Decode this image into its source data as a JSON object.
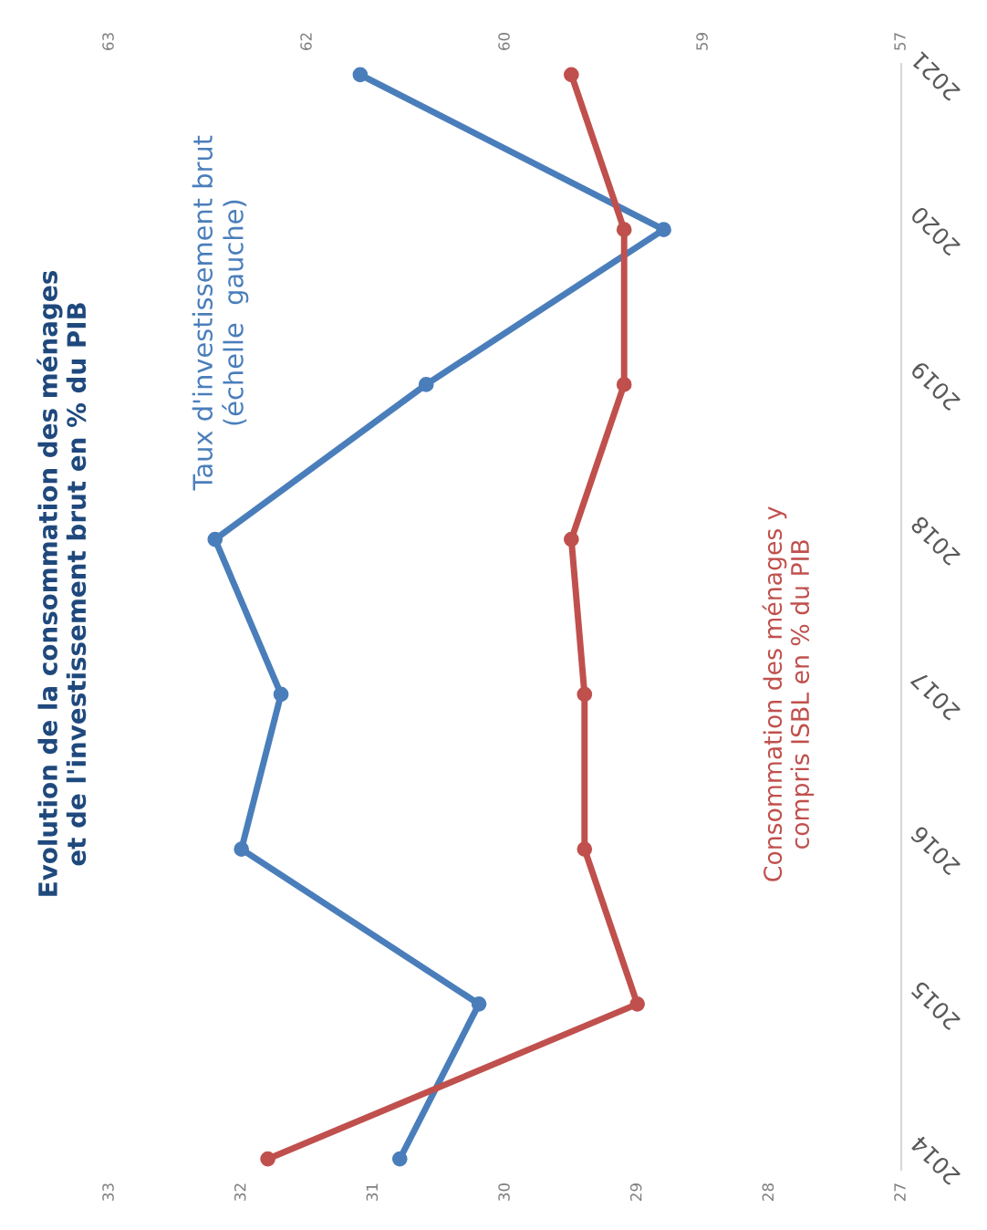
{
  "chart_data": {
    "type": "line",
    "orientation": "horizontal",
    "title": "Evolution de la consommation des ménages\net de l'investissement brut en % du PIB",
    "categories": [
      "2021",
      "2020",
      "2019",
      "2018",
      "2017",
      "2016",
      "2015",
      "2014"
    ],
    "series": [
      {
        "name": "Taux d'investissement brut\n(échelle  gauche)",
        "color": "#4a7ebb",
        "values": [
          31.1,
          28.8,
          30.6,
          32.2,
          31.7,
          32.0,
          30.2,
          30.8
        ]
      },
      {
        "name": "Consommation des ménages y\ncompris ISBL en % du PIB",
        "color": "#c0504d",
        "axis": "x2",
        "values": [
          59.5,
          59.1,
          59.1,
          59.5,
          59.4,
          59.4,
          59.0,
          61.8
        ]
      }
    ],
    "xlim": [
      33,
      27
    ],
    "xticks": [
      33,
      32,
      31,
      30,
      29,
      28,
      27
    ],
    "x2lim": [
      63,
      57
    ],
    "x2ticks": [
      63,
      {
        "value": 61.5,
        "label": "62"
      },
      60,
      {
        "value": 58.5,
        "label": "59"
      },
      57
    ],
    "marker": "circle",
    "line_style": "solid"
  }
}
